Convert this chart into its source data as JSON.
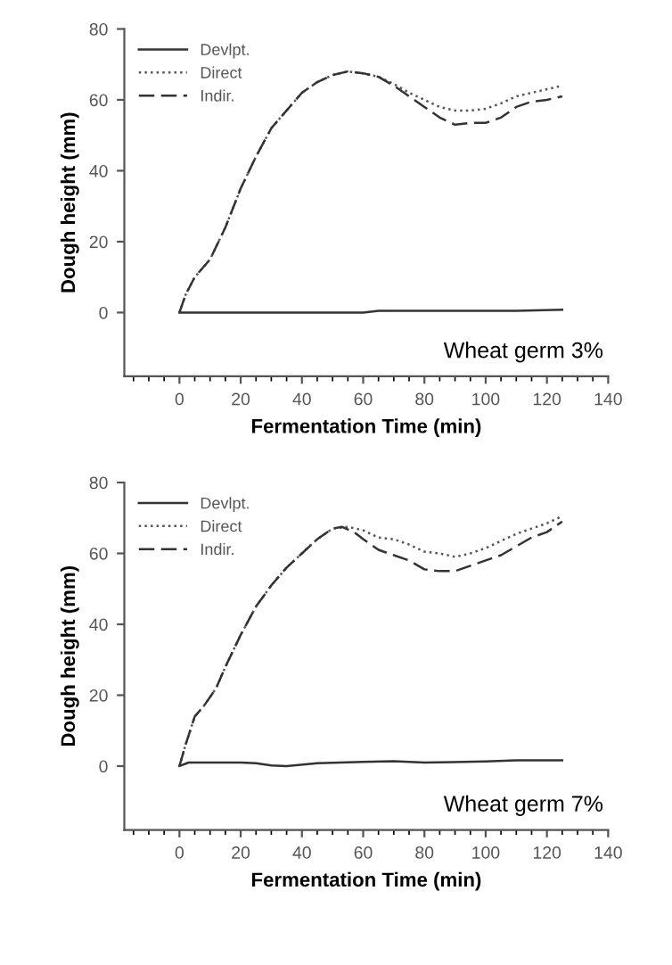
{
  "chart_data": [
    {
      "type": "line",
      "xlabel": "Fermentation Time (min)",
      "ylabel": "Dough height (mm)",
      "xlim": [
        -18,
        140
      ],
      "ylim": [
        -18,
        80
      ],
      "xticks": [
        0,
        20,
        40,
        60,
        80,
        100,
        120,
        140
      ],
      "yticks": [
        0,
        20,
        40,
        60,
        80
      ],
      "legend": "top left",
      "grid": false,
      "marker": "none",
      "annotations": [
        "Wheat germ 3%"
      ],
      "series": [
        {
          "name": "Devlpt.",
          "color": "#333333",
          "line_style": "solid",
          "x": [
            0,
            60,
            65,
            70,
            110,
            125
          ],
          "values": [
            0,
            0,
            0.5,
            0.5,
            0.5,
            0.8
          ]
        },
        {
          "name": "Direct",
          "color": "#555555",
          "line_style": "dotted",
          "x": [
            0,
            2,
            5,
            10,
            15,
            20,
            25,
            30,
            35,
            40,
            45,
            50,
            55,
            60,
            65,
            70,
            75,
            80,
            85,
            90,
            95,
            100,
            105,
            110,
            115,
            120,
            125
          ],
          "values": [
            0,
            5,
            10,
            15,
            24,
            35,
            44,
            52,
            57,
            62,
            65,
            67,
            68,
            67.5,
            66.5,
            64.5,
            62,
            60,
            58,
            57,
            57,
            57.5,
            59,
            61,
            62,
            63,
            64
          ]
        },
        {
          "name": "Indir.",
          "color": "#333333",
          "line_style": "dashed",
          "x": [
            0,
            2,
            5,
            10,
            15,
            20,
            25,
            30,
            35,
            40,
            45,
            50,
            55,
            60,
            65,
            70,
            75,
            80,
            85,
            90,
            95,
            100,
            105,
            110,
            115,
            120,
            125
          ],
          "values": [
            0,
            5,
            10,
            15,
            24,
            35,
            44,
            52,
            57,
            62,
            65,
            67,
            68,
            67.5,
            66.5,
            64,
            61,
            58,
            55,
            53,
            53.5,
            53.5,
            55,
            58,
            59.5,
            60,
            61
          ]
        }
      ]
    },
    {
      "type": "line",
      "xlabel": "Fermentation Time (min)",
      "ylabel": "Dough height (mm)",
      "xlim": [
        -18,
        140
      ],
      "ylim": [
        -18,
        80
      ],
      "xticks": [
        0,
        20,
        40,
        60,
        80,
        100,
        120,
        140
      ],
      "yticks": [
        0,
        20,
        40,
        60,
        80
      ],
      "legend": "top left",
      "grid": false,
      "marker": "none",
      "annotations": [
        "Wheat germ 7%"
      ],
      "series": [
        {
          "name": "Devlpt.",
          "color": "#333333",
          "line_style": "solid",
          "x": [
            0,
            3,
            10,
            20,
            25,
            30,
            35,
            45,
            60,
            70,
            80,
            100,
            110,
            125
          ],
          "values": [
            0,
            1,
            1,
            1,
            0.8,
            0.2,
            0,
            0.8,
            1.2,
            1.4,
            1,
            1.3,
            1.6,
            1.6
          ]
        },
        {
          "name": "Direct",
          "color": "#555555",
          "line_style": "dotted",
          "x": [
            0,
            2,
            5,
            8,
            12,
            15,
            20,
            25,
            30,
            35,
            40,
            45,
            50,
            55,
            60,
            65,
            70,
            75,
            80,
            85,
            90,
            95,
            100,
            105,
            110,
            115,
            120,
            125
          ],
          "values": [
            0,
            6,
            14,
            17,
            22,
            28,
            37,
            45,
            51,
            56,
            60,
            64,
            67,
            67.5,
            66.5,
            64.5,
            64,
            62.5,
            60.5,
            60,
            59,
            60,
            61.5,
            63.5,
            65.5,
            67,
            68.5,
            70.5
          ]
        },
        {
          "name": "Indir.",
          "color": "#333333",
          "line_style": "dashed",
          "x": [
            0,
            2,
            5,
            8,
            12,
            15,
            20,
            25,
            30,
            35,
            40,
            45,
            50,
            53,
            57,
            60,
            65,
            70,
            75,
            80,
            85,
            90,
            95,
            100,
            105,
            110,
            115,
            120,
            125
          ],
          "values": [
            0,
            6,
            14,
            17,
            22,
            28,
            37,
            45,
            51,
            56,
            60,
            64,
            67,
            67.5,
            66,
            64,
            61,
            59.5,
            58,
            55.5,
            55,
            55,
            56.5,
            58,
            59.5,
            62,
            64.5,
            66,
            69
          ]
        }
      ]
    }
  ]
}
